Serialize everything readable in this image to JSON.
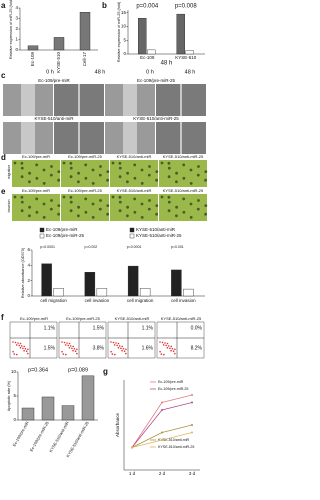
{
  "a": {
    "letter": "a",
    "ylabel": "Relative expression of miR-25 (fold)",
    "categories": [
      "Ec-109",
      "KYSE-510",
      "Cell-17"
    ],
    "values": [
      0.4,
      1.2,
      3.6
    ],
    "color": "#777",
    "ylim": [
      0,
      4
    ],
    "yticks": [
      0,
      1,
      2,
      3,
      4
    ]
  },
  "b": {
    "letter": "b",
    "ylabel": "Relative expression of miR-25 (fold)",
    "categories": [
      "Ec-109",
      "KYSE-510"
    ],
    "sublabel": "48 h",
    "series": [
      {
        "color": "#666",
        "values": [
          13,
          14.5
        ]
      },
      {
        "color": "#fff",
        "values": [
          1.5,
          1.2
        ]
      }
    ],
    "ylim": [
      0,
      16
    ],
    "yticks": [
      0,
      5,
      10,
      15
    ],
    "annotations": [
      "p=0.004",
      "p=0.008"
    ]
  },
  "c": {
    "letter": "c",
    "columns": [
      "0 h",
      "48 h"
    ],
    "groups": [
      "Ec-109/pre-miR",
      "Ec-109/pre-miR-25",
      "KYSE-510/anti-miR",
      "KYSE-510/anti-miR-25"
    ]
  },
  "d": {
    "letter": "d",
    "side": "migration",
    "images": [
      "Ec-109/pre-miR",
      "Ec-109/pre-miR-25",
      "KYSE-510/anti-miR",
      "KYSE-510/anti-miR-25"
    ]
  },
  "e": {
    "letter": "e",
    "side": "invasion",
    "images": [
      "Ec-109/pre-miR",
      "Ec-109/pre-miR-25",
      "KYSE-510/anti-miR",
      "KYSE-510/anti-miR-25"
    ]
  },
  "absorbance": {
    "ylabel": "Relative absorbance (OD570)",
    "ylim": [
      0,
      6
    ],
    "yticks": [
      0,
      2,
      4,
      6
    ],
    "categories": [
      "cell migration",
      "cell invasion",
      "cell migration",
      "cell invasion"
    ],
    "series": [
      {
        "name": "Ec-109/pre-miR",
        "color": "#222",
        "values": [
          4.2,
          3.1,
          null,
          null
        ]
      },
      {
        "name": "Ec-109/pre-miR-25",
        "color": "#fff",
        "values": [
          1,
          1,
          null,
          null
        ]
      },
      {
        "name": "KYSE-510/anti-miR",
        "color": "#222",
        "values": [
          null,
          null,
          3.9,
          3.4
        ]
      },
      {
        "name": "KYSE-510/anti-miR-25",
        "color": "#fff",
        "values": [
          null,
          null,
          1,
          0.9
        ]
      }
    ],
    "annotations": [
      "p=0.0001",
      "p=0.002",
      "p=0.0001",
      "p=0.001"
    ]
  },
  "f": {
    "letter": "f",
    "plots": [
      {
        "label": "Ec-109/pre-miR",
        "upper": "1.1%",
        "lower": "1.5%"
      },
      {
        "label": "Ec-109/pre-miR-25",
        "upper": "1.5%",
        "lower": "3.8%"
      },
      {
        "label": "KYSE-510/anti-miR",
        "upper": "1.1%",
        "lower": "1.6%"
      },
      {
        "label": "KYSE-510/anti-miR-25",
        "upper": "0.0%",
        "lower": "8.2%"
      }
    ]
  },
  "apoptosis": {
    "ylabel": "Apoptotic rate (%)",
    "categories": [
      "Ec-109/pre-miR",
      "Ec-109/pre-miR-25",
      "KYSE-510/anti-miR",
      "KYSE-510/anti-miR-25"
    ],
    "values": [
      2.5,
      4.8,
      3.0,
      9.2
    ],
    "color": "#999",
    "ylim": [
      0,
      10
    ],
    "yticks": [
      0,
      5,
      10
    ],
    "annotations": [
      "p=0.364",
      "p=0.089"
    ]
  },
  "g": {
    "letter": "g",
    "ylabel": "Absorbance",
    "x": [
      "1 d",
      "2 d",
      "3 d"
    ],
    "ylim": [
      0,
      1.2
    ],
    "series": [
      {
        "name": "Ec-109/pre-miR",
        "color": "#e08080",
        "values": [
          0.3,
          0.9,
          1.0
        ]
      },
      {
        "name": "Ec-109/pre-miR-25",
        "color": "#b05090",
        "values": [
          0.3,
          0.8,
          0.9
        ]
      },
      {
        "name": "KYSE-510/anti-miR",
        "color": "#b09040",
        "values": [
          0.3,
          0.5,
          0.6
        ]
      },
      {
        "name": "KYSE-510/anti-miR-25",
        "color": "#d8b860",
        "values": [
          0.3,
          0.4,
          0.5
        ]
      }
    ]
  }
}
